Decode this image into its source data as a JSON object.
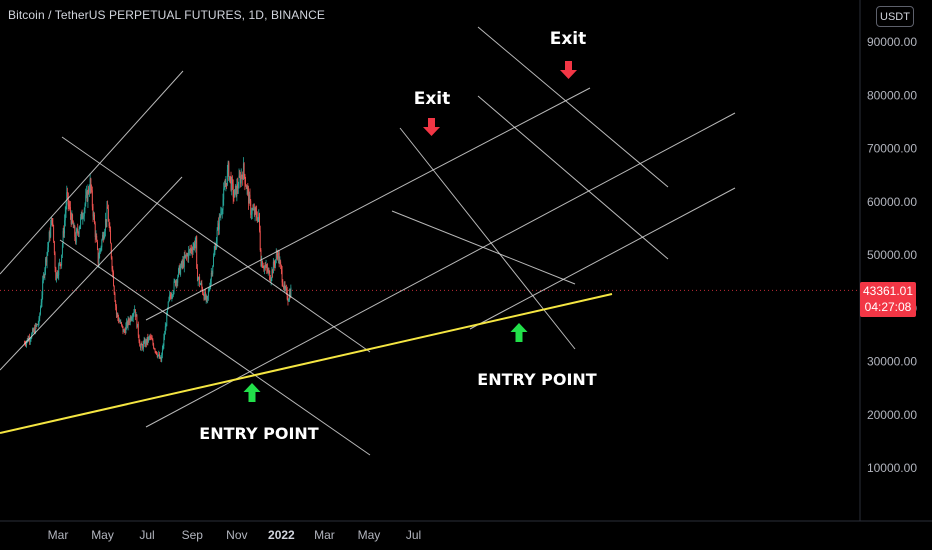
{
  "header": {
    "title": "Bitcoin / TetherUS PERPETUAL FUTURES, 1D, BINANCE",
    "currency_button": "USDT"
  },
  "price_tag": {
    "price": "43361.01",
    "countdown": "04:27:08"
  },
  "colors": {
    "background": "#000000",
    "up_candle": "#26a69a",
    "down_candle": "#ef5350",
    "channel_lines": "#d9d9d9",
    "support_line": "#f5e642",
    "exit_arrow": "#f23645",
    "entry_arrow": "#22e04a",
    "price_line": "#f23645"
  },
  "annotations": {
    "exit_1": "Exit",
    "exit_2": "Exit",
    "entry_1": "ENTRY POINT",
    "entry_2": "ENTRY POINT"
  },
  "chart_data": {
    "type": "candlestick",
    "title": "Bitcoin / TetherUS PERPETUAL FUTURES, 1D, BINANCE",
    "yaxis_side": "right",
    "y_ticks": [
      10000,
      20000,
      30000,
      40000,
      50000,
      60000,
      70000,
      80000,
      90000
    ],
    "y_tick_labels": [
      "10000.00",
      "20000.00",
      "30000.00",
      "40000.00",
      "50000.00",
      "60000.00",
      "70000.00",
      "80000.00",
      "90000.00"
    ],
    "ylim": [
      0,
      95000
    ],
    "x_ticks": [
      "Mar",
      "May",
      "Jul",
      "Sep",
      "Nov",
      "2022",
      "Mar",
      "May",
      "Jul"
    ],
    "x_tick_dates": [
      "2021-03-01",
      "2021-05-01",
      "2021-07-01",
      "2021-09-01",
      "2021-11-01",
      "2022-01-01",
      "2022-03-01",
      "2022-05-01",
      "2022-07-01"
    ],
    "xlim": [
      "2021-01-13",
      "2022-08-10"
    ],
    "last_price": 43361.01,
    "grid": false,
    "price_series_close": [
      [
        "2021-01-14",
        33500
      ],
      [
        "2021-01-24",
        35000
      ],
      [
        "2021-02-03",
        37500
      ],
      [
        "2021-02-10",
        47000
      ],
      [
        "2021-02-21",
        57000
      ],
      [
        "2021-02-26",
        46000
      ],
      [
        "2021-03-05",
        49000
      ],
      [
        "2021-03-13",
        61000
      ],
      [
        "2021-03-25",
        53000
      ],
      [
        "2021-04-05",
        58500
      ],
      [
        "2021-04-14",
        63500
      ],
      [
        "2021-04-25",
        49000
      ],
      [
        "2021-05-08",
        58500
      ],
      [
        "2021-05-16",
        45000
      ],
      [
        "2021-05-20",
        39000
      ],
      [
        "2021-05-30",
        35500
      ],
      [
        "2021-06-14",
        40000
      ],
      [
        "2021-06-22",
        32500
      ],
      [
        "2021-07-05",
        34500
      ],
      [
        "2021-07-20",
        30000
      ],
      [
        "2021-07-31",
        41500
      ],
      [
        "2021-08-14",
        47000
      ],
      [
        "2021-08-23",
        49500
      ],
      [
        "2021-09-06",
        52500
      ],
      [
        "2021-09-07",
        46500
      ],
      [
        "2021-09-21",
        41000
      ],
      [
        "2021-10-06",
        55000
      ],
      [
        "2021-10-20",
        66000
      ],
      [
        "2021-10-28",
        61000
      ],
      [
        "2021-11-10",
        66000
      ],
      [
        "2021-11-20",
        58500
      ],
      [
        "2021-12-01",
        57000
      ],
      [
        "2021-12-04",
        49000
      ],
      [
        "2021-12-17",
        46000
      ],
      [
        "2021-12-27",
        50500
      ],
      [
        "2022-01-05",
        43500
      ],
      [
        "2022-01-10",
        42000
      ],
      [
        "2022-01-14",
        43361
      ]
    ],
    "drawings": [
      {
        "label": "support trendline",
        "color": "yellow",
        "from": [
          "2021-01-13",
          16500
        ],
        "to": [
          "2022-03-13",
          41500
        ]
      },
      {
        "label": "rising channel lower",
        "from": [
          "2021-06-29",
          25000
        ],
        "to": [
          "2022-01-31",
          44000
        ]
      },
      {
        "label": "rising channel upper",
        "from": [
          "2021-05-02",
          36000
        ],
        "to": [
          "2022-03-02",
          81000
        ]
      }
    ]
  }
}
